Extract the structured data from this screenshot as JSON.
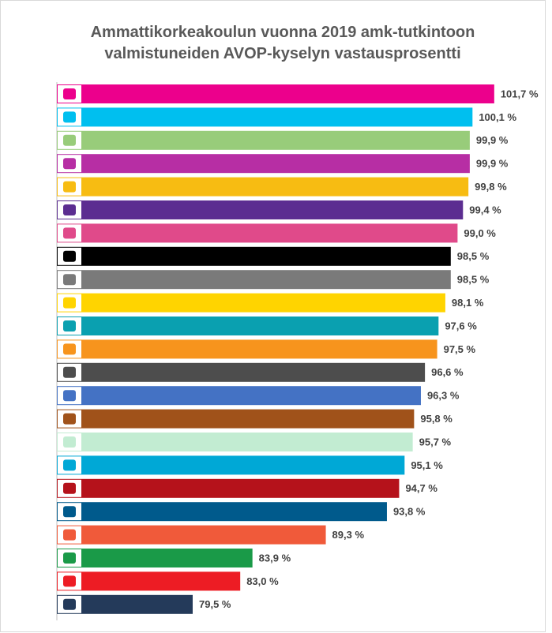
{
  "chart_data": {
    "type": "barh",
    "title": "Ammattikorkeakoulun vuonna 2019 amk-tutkintoon valmistuneiden AVOP-kyselyn vastausprosentti",
    "categories": [
      null,
      null,
      null,
      null,
      null,
      null,
      null,
      null,
      null,
      null,
      null,
      null,
      null,
      null,
      null,
      null,
      null,
      null,
      null,
      null,
      null,
      null,
      null
    ],
    "values": [
      101.7,
      100.1,
      99.9,
      99.9,
      99.8,
      99.4,
      99.0,
      98.5,
      98.5,
      98.1,
      97.6,
      97.5,
      96.6,
      96.3,
      95.8,
      95.7,
      95.1,
      94.7,
      93.8,
      89.3,
      83.9,
      83.0,
      79.5
    ],
    "value_labels": [
      "101,7 %",
      "100,1 %",
      "99,9 %",
      "99,9 %",
      "99,8 %",
      "99,4 %",
      "99,0 %",
      "98,5 %",
      "98,5 %",
      "98,1 %",
      "97,6 %",
      "97,5 %",
      "96,6 %",
      "96,3 %",
      "95,8 %",
      "95,7 %",
      "95,1 %",
      "94,7 %",
      "93,8 %",
      "89,3 %",
      "83,9 %",
      "83,0 %",
      "79,5 %"
    ],
    "colors": [
      "#ec008c",
      "#00bfef",
      "#98cc7a",
      "#b72ea4",
      "#f7bc12",
      "#5c2d91",
      "#e04a8a",
      "#000000",
      "#7a7a7a",
      "#ffd400",
      "#0aa0b0",
      "#f7941d",
      "#4d4d4d",
      "#4472c4",
      "#a0521a",
      "#c2ecd2",
      "#00a8d6",
      "#b5121b",
      "#005a8c",
      "#f05a3a",
      "#1a9a48",
      "#ed1c24",
      "#243a5a"
    ],
    "xlim": [
      69.5,
      104
    ]
  }
}
